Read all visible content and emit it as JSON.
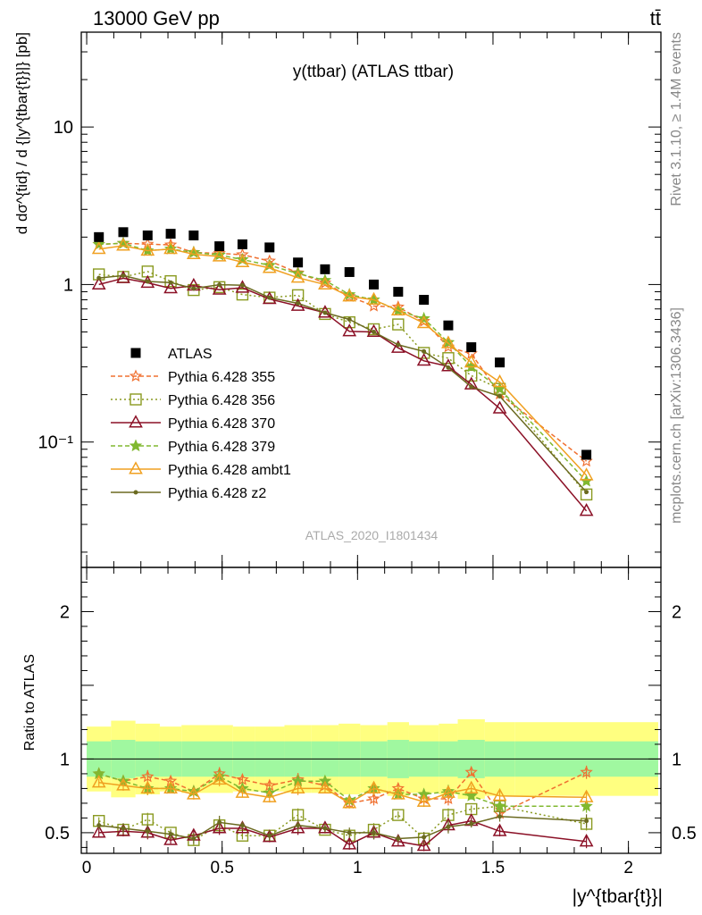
{
  "header": {
    "beam": "13000 GeV pp",
    "process": "tt̄"
  },
  "side_texts": {
    "rivet": "Rivet 3.1.10, ≥ 1.4M events",
    "mcplots": "mcplots.cern.ch [arXiv:1306.3436]"
  },
  "colors": {
    "data": "#000000",
    "p355": "#f07030",
    "p356": "#8a9a20",
    "p370": "#8b1026",
    "p379": "#80b830",
    "ambt1": "#f0a020",
    "z2": "#6b6a20",
    "band_outer": "#ffff80",
    "band_inner": "#a0f8a0"
  },
  "chart_data": {
    "title": "y(ttbar) (ATLAS ttbar)",
    "analysis_label": "ATLAS_2020_I1801434",
    "type": "scatter",
    "xlabel": "|y^{tbar{t}}|",
    "ylabel": "d dσ^{tid} / d {|y^{tbar{t}}|} [pb]",
    "ratio_ylabel": "Ratio to ATLAS",
    "x_ticks": [
      "0",
      "0.5",
      "1",
      "1.5",
      "2"
    ],
    "y_ticks": [
      "10⁻¹",
      "1",
      "10"
    ],
    "ratio_ticks": [
      "0.5",
      "1",
      "2"
    ],
    "xlim": [
      -0.02,
      2.12
    ],
    "ylim": [
      0.016,
      40
    ],
    "ratio_ylim": [
      0.36,
      2.3
    ],
    "log_y": true,
    "legend": [
      "ATLAS",
      "Pythia 6.428 355",
      "Pythia 6.428 356",
      "Pythia 6.428 370",
      "Pythia 6.428 379",
      "Pythia 6.428 ambt1",
      "Pythia 6.428 z2"
    ],
    "x": [
      0.045,
      0.135,
      0.225,
      0.31,
      0.395,
      0.49,
      0.575,
      0.675,
      0.78,
      0.88,
      0.97,
      1.06,
      1.15,
      1.245,
      1.335,
      1.42,
      1.525,
      1.845
    ],
    "x_edges": [
      0,
      0.09,
      0.18,
      0.27,
      0.35,
      0.44,
      0.54,
      0.62,
      0.73,
      0.83,
      0.93,
      1.01,
      1.11,
      1.19,
      1.3,
      1.37,
      1.47,
      1.58,
      2.11
    ],
    "data_values": [
      2.0,
      2.15,
      2.05,
      2.1,
      2.05,
      1.75,
      1.8,
      1.72,
      1.38,
      1.25,
      1.2,
      1.0,
      0.9,
      0.8,
      0.55,
      0.4,
      0.32,
      0.083
    ],
    "band_inner": [
      0.12,
      0.13,
      0.12,
      0.12,
      0.12,
      0.12,
      0.12,
      0.12,
      0.12,
      0.12,
      0.12,
      0.12,
      0.13,
      0.12,
      0.12,
      0.13,
      0.12,
      0.12
    ],
    "band_outer": [
      0.22,
      0.26,
      0.24,
      0.22,
      0.23,
      0.23,
      0.22,
      0.22,
      0.23,
      0.23,
      0.24,
      0.23,
      0.25,
      0.23,
      0.24,
      0.27,
      0.25,
      0.25
    ],
    "series": [
      {
        "name": "Pythia 6.428 355",
        "ratios": [
          0.9,
          0.85,
          0.88,
          0.85,
          0.78,
          0.9,
          0.86,
          0.82,
          0.86,
          0.82,
          0.7,
          0.73,
          0.8,
          0.73,
          0.73,
          0.91,
          0.63,
          0.91
        ]
      },
      {
        "name": "Pythia 6.428 356",
        "ratios": [
          0.58,
          0.52,
          0.59,
          0.5,
          0.45,
          0.55,
          0.48,
          0.48,
          0.62,
          0.52,
          0.48,
          0.52,
          0.62,
          0.46,
          0.62,
          0.66,
          0.68,
          0.56
        ]
      },
      {
        "name": "Pythia 6.428 370",
        "ratios": [
          0.5,
          0.51,
          0.5,
          0.45,
          0.48,
          0.53,
          0.53,
          0.47,
          0.53,
          0.53,
          0.42,
          0.5,
          0.44,
          0.41,
          0.55,
          0.58,
          0.51,
          0.44
        ]
      },
      {
        "name": "Pythia 6.428 379",
        "ratios": [
          0.9,
          0.85,
          0.8,
          0.8,
          0.78,
          0.88,
          0.8,
          0.77,
          0.85,
          0.85,
          0.72,
          0.8,
          0.76,
          0.76,
          0.78,
          0.75,
          0.68,
          0.68
        ]
      },
      {
        "name": "Pythia 6.428 ambt1",
        "ratios": [
          0.84,
          0.82,
          0.8,
          0.8,
          0.76,
          0.86,
          0.77,
          0.74,
          0.8,
          0.8,
          0.7,
          0.8,
          0.76,
          0.71,
          0.77,
          0.8,
          0.75,
          0.74
        ]
      },
      {
        "name": "Pythia 6.428 z2",
        "ratios": [
          0.55,
          0.53,
          0.51,
          0.49,
          0.46,
          0.57,
          0.55,
          0.48,
          0.55,
          0.53,
          0.5,
          0.5,
          0.46,
          0.47,
          0.54,
          0.56,
          0.61,
          0.58
        ]
      }
    ]
  }
}
